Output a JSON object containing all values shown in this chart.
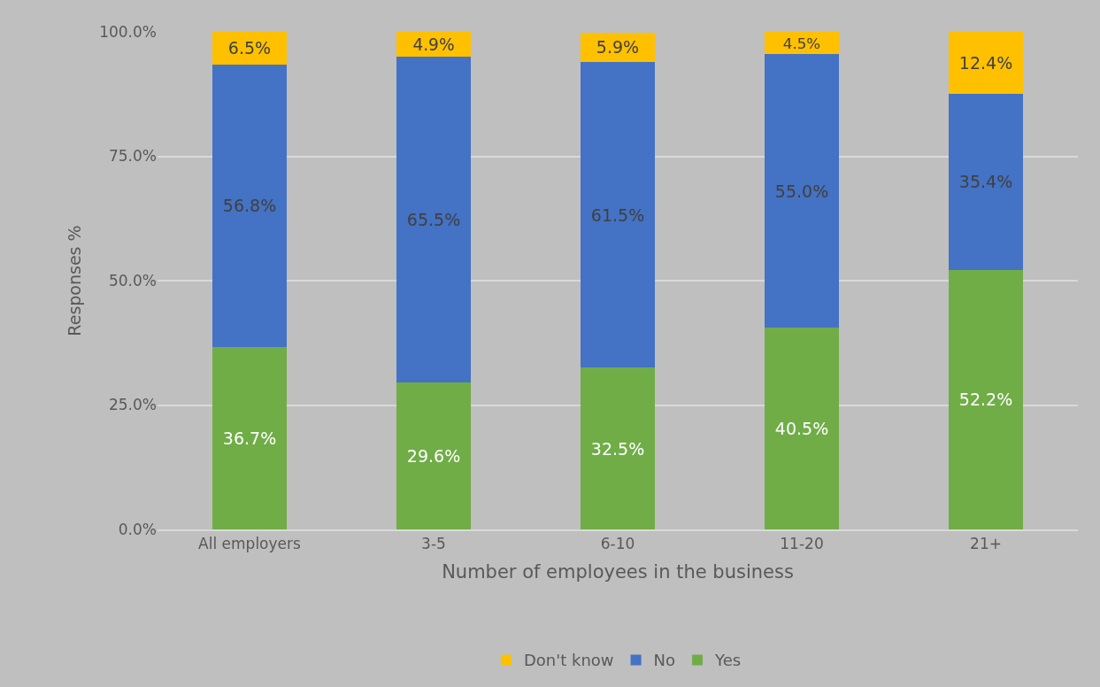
{
  "chart_data": {
    "type": "bar",
    "stacked": true,
    "xlabel": "Number of employees in the business",
    "ylabel": "Responses %",
    "categories": [
      "All employers",
      "3-5",
      "6-10",
      "11-20",
      "21+"
    ],
    "series": [
      {
        "name": "Yes",
        "color": "#70ad47",
        "values": [
          36.7,
          29.6,
          32.5,
          40.5,
          52.2
        ],
        "value_labels": [
          "36.7%",
          "29.6%",
          "32.5%",
          "40.5%",
          "52.2%"
        ]
      },
      {
        "name": "No",
        "color": "#4472c4",
        "values": [
          56.8,
          65.5,
          61.5,
          55.0,
          35.4
        ],
        "value_labels": [
          "56.8%",
          "65.5%",
          "61.5%",
          "55.0%",
          "35.4%"
        ]
      },
      {
        "name": "Don't know",
        "color": "#ffc000",
        "values": [
          6.5,
          4.9,
          5.9,
          4.5,
          12.4
        ],
        "value_labels": [
          "6.5%",
          "4.9%",
          "5.9%",
          "4.5%",
          "12.4%"
        ]
      }
    ],
    "ylim": [
      0,
      100
    ],
    "yticks": [
      {
        "value": 0,
        "label": "0.0%"
      },
      {
        "value": 25,
        "label": "25.0%"
      },
      {
        "value": 50,
        "label": "50.0%"
      },
      {
        "value": 75,
        "label": "75.0%"
      },
      {
        "value": 100,
        "label": "100.0%"
      }
    ],
    "grid": "y",
    "legend": "bottom"
  }
}
